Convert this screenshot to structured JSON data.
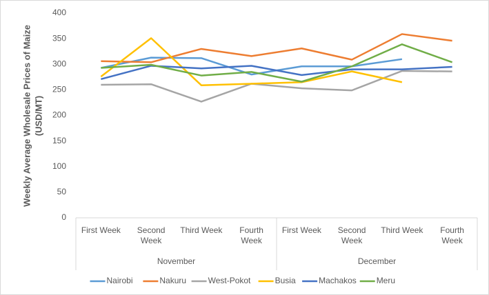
{
  "chart_data": {
    "type": "line",
    "y_label": [
      "Weekly Average Wholesale Prices of Maize",
      "(USD/MT)"
    ],
    "categories": [
      "First Week",
      "Second Week",
      "Third Week",
      "Fourth Week",
      "First Week",
      "Second Week",
      "Third Week",
      "Fourth Week"
    ],
    "groups": [
      "November",
      "December"
    ],
    "series": [
      {
        "name": "Nairobi",
        "color": "#5b9bd5",
        "values": [
          293,
          313,
          312,
          280,
          296,
          296,
          310,
          null
        ]
      },
      {
        "name": "Nakuru",
        "color": "#ed7d31",
        "values": [
          306,
          304,
          330,
          316,
          331,
          309,
          359,
          346
        ]
      },
      {
        "name": "West-Pokot",
        "color": "#a5a5a5",
        "values": [
          260,
          261,
          227,
          262,
          253,
          249,
          287,
          286
        ]
      },
      {
        "name": "Busia",
        "color": "#ffc000",
        "values": [
          276,
          351,
          259,
          262,
          265,
          286,
          265,
          null
        ]
      },
      {
        "name": "Machakos",
        "color": "#4472c4",
        "values": [
          271,
          297,
          292,
          297,
          279,
          290,
          290,
          295
        ]
      },
      {
        "name": "Meru",
        "color": "#70ad47",
        "values": [
          293,
          299,
          278,
          285,
          266,
          296,
          339,
          304
        ]
      }
    ],
    "ylim": [
      0,
      400
    ],
    "yticks": [
      0,
      50,
      100,
      150,
      200,
      250,
      300,
      350,
      400
    ],
    "grid": false,
    "legend": "bottom"
  }
}
